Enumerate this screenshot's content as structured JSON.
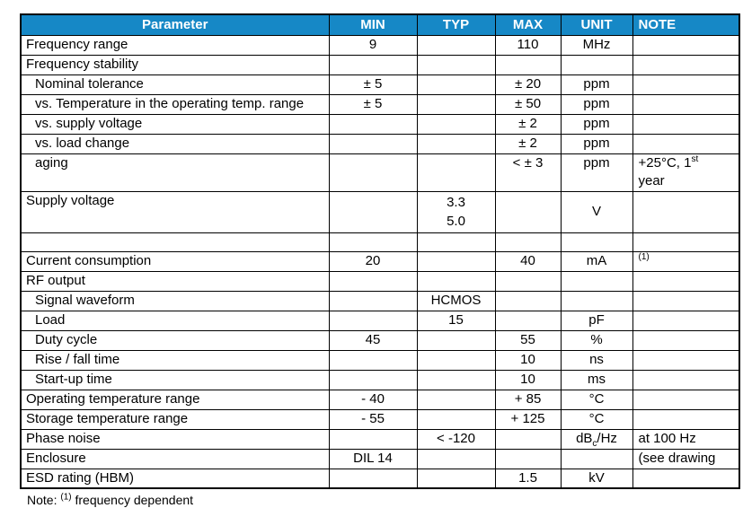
{
  "table": {
    "header": {
      "bg_color": "#1688c6",
      "text_color": "#ffffff",
      "columns": [
        "Parameter",
        "MIN",
        "TYP",
        "MAX",
        "UNIT",
        "NOTE"
      ]
    },
    "rows": [
      {
        "parameter": "Frequency range",
        "indent": false,
        "min": "",
        "typ": "",
        "max": "110",
        "unit": "MHz",
        "note": ""
      },
      {
        "parameter": "Frequency stability",
        "indent": false,
        "min": "",
        "typ": "",
        "max": "",
        "unit": "",
        "note": ""
      },
      {
        "parameter": "Nominal tolerance",
        "indent": true,
        "min": "± 5",
        "typ": "",
        "max": "± 20",
        "unit": "ppm",
        "note": ""
      },
      {
        "parameter": "vs. Temperature in the operating temp. range",
        "indent": true,
        "min": "± 5",
        "typ": "",
        "max": "± 50",
        "unit": "ppm",
        "note": ""
      },
      {
        "parameter": "vs. supply voltage",
        "indent": true,
        "min": "",
        "typ": "",
        "max": "± 2",
        "unit": "ppm",
        "note": ""
      },
      {
        "parameter": "vs. load change",
        "indent": true,
        "min": "",
        "typ": "",
        "max": "± 2",
        "unit": "ppm",
        "note": ""
      },
      {
        "parameter": "aging",
        "indent": true,
        "min": "",
        "typ": "",
        "max": "< ± 3",
        "unit": "ppm",
        "note": "+25°C, 1^{st}\nyear"
      },
      {
        "parameter": "Supply voltage",
        "indent": false,
        "min": "",
        "typ": "3.3\n5.0",
        "max": "",
        "unit": "V",
        "note": ""
      },
      {
        "parameter": "",
        "indent": false,
        "min": "",
        "typ": "",
        "max": "",
        "unit": "",
        "note": ""
      },
      {
        "parameter": "Current consumption",
        "indent": false,
        "min": "20",
        "typ": "",
        "max": "40",
        "unit": "mA",
        "note": "^{(1)}"
      },
      {
        "parameter": "RF output",
        "indent": false,
        "min": "",
        "typ": "",
        "max": "",
        "unit": "",
        "note": ""
      },
      {
        "parameter": "Signal waveform",
        "indent": true,
        "min": "",
        "typ": "HCMOS",
        "max": "",
        "unit": "",
        "note": ""
      },
      {
        "parameter": "Load",
        "indent": true,
        "min": "",
        "typ": "15",
        "max": "",
        "unit": "pF",
        "note": ""
      },
      {
        "parameter": "Duty cycle",
        "indent": true,
        "min": "45",
        "typ": "",
        "max": "55",
        "unit": "%",
        "note": ""
      },
      {
        "parameter": "Rise / fall time",
        "indent": true,
        "min": "",
        "typ": "",
        "max": "10",
        "unit": "ns",
        "note": ""
      },
      {
        "parameter": "Start-up time",
        "indent": true,
        "min": "",
        "typ": "",
        "max": "10",
        "unit": "ms",
        "note": ""
      },
      {
        "parameter": "Operating temperature range",
        "indent": false,
        "min": "- 40",
        "typ": "",
        "max": "+ 85",
        "unit": "°C",
        "note": ""
      },
      {
        "parameter": "Storage temperature range",
        "indent": false,
        "min": "- 55",
        "typ": "",
        "max": "+ 125",
        "unit": "°C",
        "note": ""
      },
      {
        "parameter": "Phase noise",
        "indent": false,
        "min": "",
        "typ": "< -120",
        "max": "",
        "unit": "dB_{c}/Hz",
        "note": "at 100 Hz"
      },
      {
        "parameter": "Enclosure",
        "indent": false,
        "min": "DIL 14",
        "typ": "",
        "max": "",
        "unit": "",
        "note": "(see drawing"
      },
      {
        "parameter": "ESD rating (HBM)",
        "indent": false,
        "min": "",
        "typ": "",
        "max": "1.5",
        "unit": "kV",
        "note": ""
      }
    ],
    "first_row_min": "9",
    "footnote": "Note: ^{(1)} frequency dependent"
  }
}
